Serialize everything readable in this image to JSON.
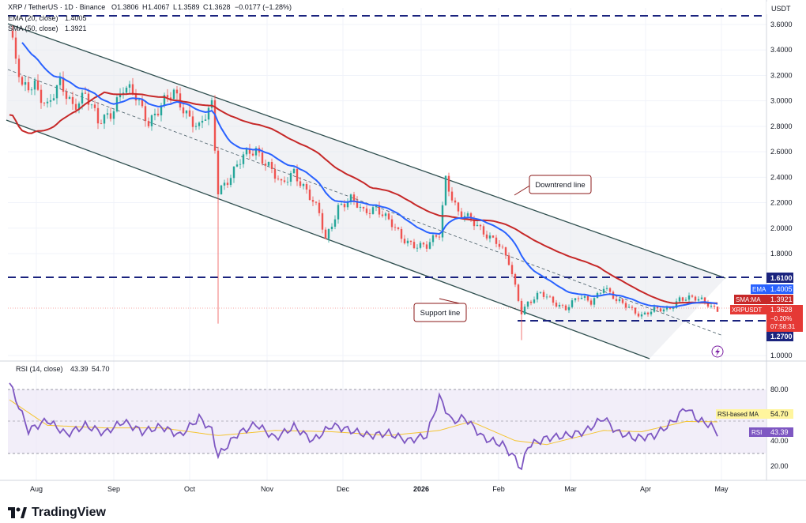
{
  "header": {
    "symbol": "XRP / TetherUS · 1D · Binance",
    "o_label": "O",
    "o": "1.3806",
    "h_label": "H",
    "h": "1.4067",
    "l_label": "L",
    "l": "1.3589",
    "c_label": "C",
    "c": "1.3628",
    "change": "−0.0177 (−1.28%)",
    "ema_label": "EMA (20, close)",
    "ema_value": "1.4005",
    "sma_label": "SMA (50, close)",
    "sma_value": "1.3921",
    "rsi_label": "RSI (14, close)",
    "rsi_value": "43.39",
    "rsi_ma_value": "54.70"
  },
  "currency": "USDT",
  "colors": {
    "up": "#26a69a",
    "down": "#ef5350",
    "ema": "#2962ff",
    "sma": "#c62828",
    "rsi": "#7e57c2",
    "rsi_ma": "#f4c430",
    "dash": "#1a237e",
    "channel": "#2f4f4f"
  },
  "annotations": {
    "downtrend": "Downtrend line",
    "support": "Support line"
  },
  "levels": {
    "resistance": "1.6100",
    "support": "1.2700"
  },
  "price_tags": {
    "ema_label": "EMA",
    "ema": "1.4005",
    "sma_label": "SMA:MA",
    "sma": "1.3921",
    "sym_label": "XRPUSDT",
    "price": "1.3628",
    "pct": "−0.20%",
    "countdown": "07:58:31"
  },
  "rsi_tags": {
    "ma_label": "RSI-based MA",
    "ma": "54.70",
    "rsi_label": "RSI",
    "rsi": "43.39"
  },
  "chart_data": {
    "type": "candlestick",
    "price_axis": {
      "ticks": [
        "3.6000",
        "3.4000",
        "3.2000",
        "3.0000",
        "2.8000",
        "2.6000",
        "2.4000",
        "2.2000",
        "2.0000",
        "1.8000",
        "1.0000"
      ]
    },
    "time_axis": [
      "Aug",
      "Sep",
      "Oct",
      "Nov",
      "Dec",
      "2026",
      "Feb",
      "Mar",
      "Apr",
      "May"
    ],
    "rsi_axis": [
      "80.00",
      "60.00",
      "40.00",
      "20.00"
    ],
    "close_path": [
      {
        "t": 0,
        "v": 3.55
      },
      {
        "t": 4,
        "v": 3.08
      },
      {
        "t": 8,
        "v": 3.15
      },
      {
        "t": 12,
        "v": 2.95
      },
      {
        "t": 16,
        "v": 3.12
      },
      {
        "t": 20,
        "v": 2.98
      },
      {
        "t": 24,
        "v": 3.05
      },
      {
        "t": 28,
        "v": 2.82
      },
      {
        "t": 32,
        "v": 2.92
      },
      {
        "t": 36,
        "v": 3.1
      },
      {
        "t": 40,
        "v": 3.02
      },
      {
        "t": 44,
        "v": 2.85
      },
      {
        "t": 48,
        "v": 2.96
      },
      {
        "t": 52,
        "v": 3.05
      },
      {
        "t": 56,
        "v": 2.92
      },
      {
        "t": 60,
        "v": 2.78
      },
      {
        "t": 64,
        "v": 2.95
      },
      {
        "t": 66,
        "v": 2.3
      },
      {
        "t": 70,
        "v": 2.42
      },
      {
        "t": 74,
        "v": 2.55
      },
      {
        "t": 78,
        "v": 2.62
      },
      {
        "t": 82,
        "v": 2.5
      },
      {
        "t": 86,
        "v": 2.32
      },
      {
        "t": 90,
        "v": 2.45
      },
      {
        "t": 94,
        "v": 2.3
      },
      {
        "t": 98,
        "v": 2.1
      },
      {
        "t": 100,
        "v": 1.9
      },
      {
        "t": 104,
        "v": 2.18
      },
      {
        "t": 108,
        "v": 2.22
      },
      {
        "t": 112,
        "v": 2.12
      },
      {
        "t": 116,
        "v": 2.18
      },
      {
        "t": 120,
        "v": 2.05
      },
      {
        "t": 124,
        "v": 1.92
      },
      {
        "t": 128,
        "v": 1.88
      },
      {
        "t": 132,
        "v": 1.85
      },
      {
        "t": 136,
        "v": 1.95
      },
      {
        "t": 138,
        "v": 2.4
      },
      {
        "t": 142,
        "v": 2.12
      },
      {
        "t": 146,
        "v": 2.05
      },
      {
        "t": 150,
        "v": 1.98
      },
      {
        "t": 154,
        "v": 1.9
      },
      {
        "t": 158,
        "v": 1.72
      },
      {
        "t": 162,
        "v": 1.35
      },
      {
        "t": 164,
        "v": 1.42
      },
      {
        "t": 168,
        "v": 1.48
      },
      {
        "t": 172,
        "v": 1.42
      },
      {
        "t": 176,
        "v": 1.38
      },
      {
        "t": 180,
        "v": 1.45
      },
      {
        "t": 184,
        "v": 1.42
      },
      {
        "t": 188,
        "v": 1.55
      },
      {
        "t": 192,
        "v": 1.42
      },
      {
        "t": 196,
        "v": 1.38
      },
      {
        "t": 200,
        "v": 1.32
      },
      {
        "t": 204,
        "v": 1.35
      },
      {
        "t": 208,
        "v": 1.36
      },
      {
        "t": 212,
        "v": 1.45
      },
      {
        "t": 216,
        "v": 1.44
      },
      {
        "t": 220,
        "v": 1.43
      },
      {
        "t": 224,
        "v": 1.3628
      }
    ],
    "rsi_path": [
      {
        "t": 0,
        "v": 85
      },
      {
        "t": 6,
        "v": 48
      },
      {
        "t": 12,
        "v": 56
      },
      {
        "t": 18,
        "v": 45
      },
      {
        "t": 24,
        "v": 52
      },
      {
        "t": 30,
        "v": 46
      },
      {
        "t": 36,
        "v": 55
      },
      {
        "t": 42,
        "v": 47
      },
      {
        "t": 48,
        "v": 51
      },
      {
        "t": 54,
        "v": 44
      },
      {
        "t": 60,
        "v": 58
      },
      {
        "t": 64,
        "v": 48
      },
      {
        "t": 66,
        "v": 28
      },
      {
        "t": 72,
        "v": 45
      },
      {
        "t": 78,
        "v": 53
      },
      {
        "t": 84,
        "v": 42
      },
      {
        "t": 90,
        "v": 51
      },
      {
        "t": 96,
        "v": 40
      },
      {
        "t": 102,
        "v": 52
      },
      {
        "t": 108,
        "v": 48
      },
      {
        "t": 114,
        "v": 44
      },
      {
        "t": 120,
        "v": 46
      },
      {
        "t": 126,
        "v": 40
      },
      {
        "t": 132,
        "v": 44
      },
      {
        "t": 136,
        "v": 74
      },
      {
        "t": 140,
        "v": 55
      },
      {
        "t": 144,
        "v": 58
      },
      {
        "t": 150,
        "v": 42
      },
      {
        "t": 156,
        "v": 37
      },
      {
        "t": 160,
        "v": 26
      },
      {
        "t": 162,
        "v": 18
      },
      {
        "t": 164,
        "v": 36
      },
      {
        "t": 170,
        "v": 42
      },
      {
        "t": 176,
        "v": 44
      },
      {
        "t": 182,
        "v": 47
      },
      {
        "t": 188,
        "v": 58
      },
      {
        "t": 192,
        "v": 47
      },
      {
        "t": 198,
        "v": 42
      },
      {
        "t": 204,
        "v": 44
      },
      {
        "t": 210,
        "v": 55
      },
      {
        "t": 214,
        "v": 66
      },
      {
        "t": 218,
        "v": 56
      },
      {
        "t": 222,
        "v": 52
      },
      {
        "t": 224,
        "v": 43.39
      }
    ],
    "rsi_ma_path": [
      {
        "t": 0,
        "v": 72
      },
      {
        "t": 12,
        "v": 52
      },
      {
        "t": 30,
        "v": 50
      },
      {
        "t": 48,
        "v": 50
      },
      {
        "t": 66,
        "v": 44
      },
      {
        "t": 84,
        "v": 48
      },
      {
        "t": 102,
        "v": 47
      },
      {
        "t": 120,
        "v": 44
      },
      {
        "t": 136,
        "v": 48
      },
      {
        "t": 146,
        "v": 55
      },
      {
        "t": 160,
        "v": 40
      },
      {
        "t": 170,
        "v": 37
      },
      {
        "t": 188,
        "v": 48
      },
      {
        "t": 200,
        "v": 47
      },
      {
        "t": 214,
        "v": 55
      },
      {
        "t": 224,
        "v": 54.7
      }
    ]
  }
}
